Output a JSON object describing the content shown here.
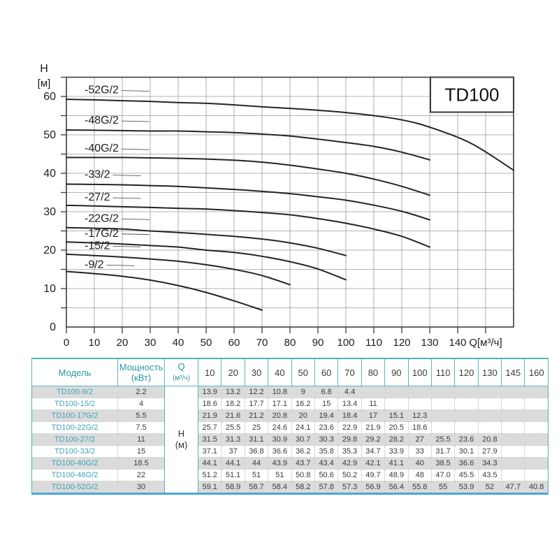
{
  "chart": {
    "title_box_label": "TD100",
    "y_axis_label_line1": "H",
    "y_axis_label_line2": "[м]",
    "x_axis_label": "Q[м³/ч]",
    "y_tick_labels": [
      "0",
      "10",
      "20",
      "30",
      "40",
      "50",
      "60"
    ],
    "x_tick_labels": [
      "0",
      "10",
      "20",
      "30",
      "40",
      "50",
      "60",
      "70",
      "80",
      "90",
      "100",
      "110",
      "120",
      "130",
      "140"
    ],
    "colors": {
      "curve": "#242424",
      "grid": "#9a9a9a",
      "frame": "#3c3c3c",
      "text": "#1e1e1e"
    }
  },
  "chart_data": {
    "type": "line",
    "title": "TD100",
    "xlabel": "Q[м³/ч]",
    "ylabel": "H [м]",
    "xlim": [
      0,
      160
    ],
    "ylim": [
      0,
      65
    ],
    "x_grid_step": 10,
    "y_grid_step": 5,
    "legend_position": "labels-on-curves",
    "x": [
      10,
      20,
      30,
      40,
      50,
      60,
      70,
      80,
      90,
      100,
      110,
      120,
      130,
      145,
      160
    ],
    "series": [
      {
        "model": "TD100-9/2",
        "curve_label": "-9/2",
        "power_kw": "2.2",
        "label_y": 15.4,
        "values": [
          "13.9",
          "13.2",
          "12.2",
          "10.8",
          "9",
          "6.8",
          "4.4"
        ]
      },
      {
        "model": "TD100-15/2",
        "curve_label": "-15/2",
        "power_kw": "4",
        "label_y": 20.3,
        "values": [
          "18.6",
          "18.2",
          "17.7",
          "17.1",
          "16.2",
          "15",
          "13.4",
          "11"
        ]
      },
      {
        "model": "TD100-17G/2",
        "curve_label": "-17G/2",
        "power_kw": "5.5",
        "label_y": 23.5,
        "values": [
          "21.9",
          "21.6",
          "21.2",
          "20.8",
          "20",
          "19.4",
          "18.4",
          "17",
          "15.1",
          "12.3"
        ]
      },
      {
        "model": "TD100-22G/2",
        "curve_label": "-22G/2",
        "power_kw": "7.5",
        "label_y": 27.4,
        "values": [
          "25.7",
          "25.5",
          "25",
          "24.6",
          "24.1",
          "23.6",
          "22.9",
          "21.9",
          "20.5",
          "18.6"
        ]
      },
      {
        "model": "TD100-27/2",
        "curve_label": "-27/2",
        "power_kw": "11",
        "label_y": 32.9,
        "values": [
          "31.5",
          "31.3",
          "31.1",
          "30.9",
          "30.7",
          "30.3",
          "29.8",
          "29.2",
          "28.2",
          "27",
          "25.5",
          "23.6",
          "20.8"
        ]
      },
      {
        "model": "TD100-33/2",
        "curve_label": "-33/2",
        "power_kw": "15",
        "label_y": 38.8,
        "values": [
          "37.1",
          "37",
          "36.8",
          "36.6",
          "36.2",
          "35.8",
          "35.3",
          "34.7",
          "33.9",
          "33",
          "31.7",
          "30.1",
          "27.9"
        ]
      },
      {
        "model": "TD100-40G/2",
        "curve_label": "-40G/2",
        "power_kw": "18.5",
        "label_y": 45.6,
        "values": [
          "44.1",
          "44.1",
          "44",
          "43.9",
          "43.7",
          "43.4",
          "42.9",
          "42.1",
          "41.1",
          "40",
          "38.5",
          "36.6",
          "34.3"
        ]
      },
      {
        "model": "TD100-48G/2",
        "curve_label": "-48G/2",
        "power_kw": "22",
        "label_y": 52.9,
        "values": [
          "51.2",
          "51.1",
          "51",
          "51",
          "50.8",
          "50.6",
          "50.2",
          "49.7",
          "48.9",
          "48",
          "47.0",
          "45.5",
          "43.5"
        ]
      },
      {
        "model": "TD100-52G/2",
        "curve_label": "-52G/2",
        "power_kw": "30",
        "label_y": 60.8,
        "values": [
          "59.1",
          "58.9",
          "58.7",
          "58.4",
          "58.2",
          "57.8",
          "57.3",
          "56.9",
          "56.4",
          "55.8",
          "55",
          "53.9",
          "52",
          "47.7",
          "40.8"
        ]
      }
    ]
  },
  "table": {
    "col_model": "Модель",
    "col_power_line1": "Мощность",
    "col_power_line2": "(кВт)",
    "col_q_line1": "Q",
    "col_q_line2": "(м³/ч)",
    "merged_h_line1": "H",
    "merged_h_line2": "(м)",
    "flow_columns": [
      "10",
      "20",
      "30",
      "40",
      "50",
      "60",
      "70",
      "80",
      "90",
      "100",
      "110",
      "120",
      "130",
      "145",
      "160"
    ],
    "colors": {
      "header_text": "#2a97a4",
      "model_text": "#3ba4b8",
      "value_text": "#3a3a3a",
      "stripe": "#dbdbdb",
      "border_teal": "#56b8c2",
      "border_bottom_blue": "#49a7d6"
    }
  }
}
